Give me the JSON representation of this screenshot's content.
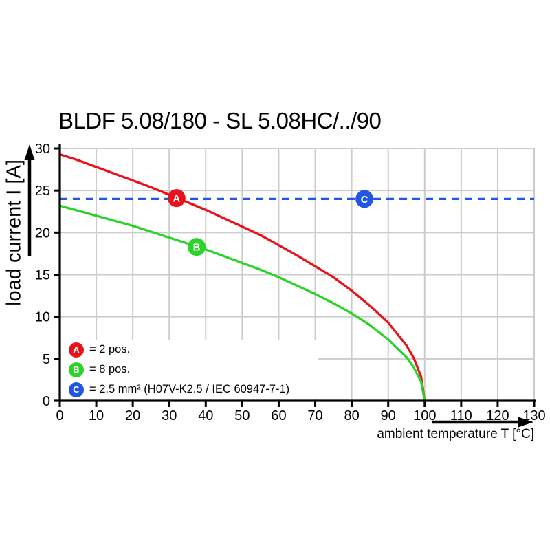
{
  "title": "BLDF 5.08/180 - SL 5.08HC/../90",
  "axes": {
    "x_label": "ambient temperature T [°C]",
    "y_label": "load current I [A]"
  },
  "chart_data": {
    "type": "line",
    "title": "BLDF 5.08/180 - SL 5.08HC/../90",
    "xlabel": "ambient temperature T [°C]",
    "ylabel": "load current I [A]",
    "xlim": [
      0,
      130
    ],
    "ylim": [
      0,
      30
    ],
    "x_ticks": [
      0,
      10,
      20,
      30,
      40,
      50,
      60,
      70,
      80,
      90,
      100,
      110,
      120,
      130
    ],
    "y_ticks": [
      0,
      5,
      10,
      15,
      20,
      25,
      30
    ],
    "grid": true,
    "legend_position": "bottom-left",
    "series": [
      {
        "id": "A",
        "name": "A = 2 pos.",
        "color": "#e8131a",
        "style": "solid",
        "points": [
          [
            0,
            29.3
          ],
          [
            5,
            28.6
          ],
          [
            10,
            27.8
          ],
          [
            15,
            27.0
          ],
          [
            20,
            26.2
          ],
          [
            25,
            25.4
          ],
          [
            30,
            24.5
          ],
          [
            35,
            23.6
          ],
          [
            40,
            22.7
          ],
          [
            45,
            21.7
          ],
          [
            50,
            20.7
          ],
          [
            55,
            19.7
          ],
          [
            60,
            18.5
          ],
          [
            65,
            17.3
          ],
          [
            70,
            16.0
          ],
          [
            75,
            14.7
          ],
          [
            80,
            13.1
          ],
          [
            85,
            11.3
          ],
          [
            90,
            9.3
          ],
          [
            95,
            6.6
          ],
          [
            97,
            5.1
          ],
          [
            99,
            2.9
          ],
          [
            100,
            0
          ]
        ]
      },
      {
        "id": "B",
        "name": "B = 8 pos.",
        "color": "#2bd32b",
        "style": "solid",
        "points": [
          [
            0,
            23.2
          ],
          [
            5,
            22.6
          ],
          [
            10,
            22.0
          ],
          [
            15,
            21.4
          ],
          [
            20,
            20.8
          ],
          [
            25,
            20.1
          ],
          [
            30,
            19.4
          ],
          [
            35,
            18.7
          ],
          [
            40,
            18.0
          ],
          [
            45,
            17.2
          ],
          [
            50,
            16.4
          ],
          [
            55,
            15.6
          ],
          [
            60,
            14.7
          ],
          [
            65,
            13.7
          ],
          [
            70,
            12.7
          ],
          [
            75,
            11.6
          ],
          [
            80,
            10.4
          ],
          [
            85,
            9.0
          ],
          [
            90,
            7.3
          ],
          [
            95,
            5.2
          ],
          [
            97,
            4.0
          ],
          [
            99,
            2.3
          ],
          [
            100,
            0
          ]
        ]
      },
      {
        "id": "C",
        "name": "C = 2.5 mm² (H07V-K2.5 / IEC 60947-7-1)",
        "color": "#2257e3",
        "style": "dashed",
        "points": [
          [
            0,
            24
          ],
          [
            130,
            24
          ]
        ]
      }
    ],
    "markers": [
      {
        "label": "A",
        "x": 32,
        "y": 24.1,
        "color": "#e8131a"
      },
      {
        "label": "B",
        "x": 37.5,
        "y": 18.3,
        "color": "#2bd32b"
      },
      {
        "label": "C",
        "x": 83.5,
        "y": 24,
        "color": "#2257e3"
      }
    ]
  },
  "legend": {
    "items": [
      {
        "letter": "A",
        "color": "#e8131a",
        "label": "= 2 pos."
      },
      {
        "letter": "B",
        "color": "#2bd32b",
        "label": "= 8 pos."
      },
      {
        "letter": "C",
        "color": "#2257e3",
        "label": "= 2.5 mm² (H07V-K2.5 / IEC 60947-7-1)"
      }
    ]
  },
  "colors": {
    "grid": "#cccccc",
    "axis": "#000000",
    "background": "#ffffff"
  }
}
